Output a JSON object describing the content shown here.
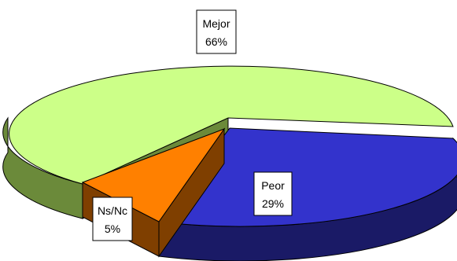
{
  "chart_data": {
    "type": "pie",
    "style": "3d-exploded",
    "title": "",
    "slices": [
      {
        "label": "Mejor",
        "value": 66,
        "percent_label": "66%",
        "color": "#ccff88",
        "side_color": "#6b8a3a"
      },
      {
        "label": "Peor",
        "value": 29,
        "percent_label": "29%",
        "color": "#3333cc",
        "side_color": "#1a1a66"
      },
      {
        "label": "Ns/Nc",
        "value": 5,
        "percent_label": "5%",
        "color": "#ff8000",
        "side_color": "#7f3f00"
      }
    ]
  }
}
